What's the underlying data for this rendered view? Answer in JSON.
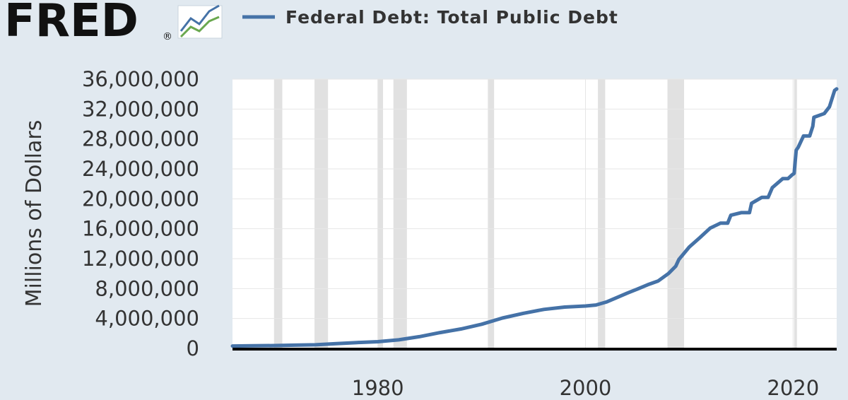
{
  "logo": {
    "text": "FRED",
    "mark": "®",
    "icon": "fred-line-chart-icon"
  },
  "chart_data": {
    "type": "line",
    "title": "",
    "xlabel": "",
    "ylabel": "Millions of Dollars",
    "legend": {
      "position": "top-left",
      "entries": [
        "Federal Debt: Total Public Debt"
      ]
    },
    "xlim": [
      1966,
      2024.2
    ],
    "ylim": [
      0,
      36000000
    ],
    "y_ticks": [
      0,
      4000000,
      8000000,
      12000000,
      16000000,
      20000000,
      24000000,
      28000000,
      32000000,
      36000000
    ],
    "y_tick_labels": [
      "0",
      "4,000,000",
      "8,000,000",
      "12,000,000",
      "16,000,000",
      "20,000,000",
      "24,000,000",
      "28,000,000",
      "32,000,000",
      "36,000,000"
    ],
    "x_ticks": [
      1980,
      2000,
      2020
    ],
    "x_tick_labels": [
      "1980",
      "2000",
      "2020"
    ],
    "grid": true,
    "recession_shading": [
      [
        1970.0,
        1970.8
      ],
      [
        1973.9,
        1975.2
      ],
      [
        1980.0,
        1980.5
      ],
      [
        1981.5,
        1982.8
      ],
      [
        1990.6,
        1991.2
      ],
      [
        2001.2,
        2001.9
      ],
      [
        2007.9,
        2009.5
      ],
      [
        2020.1,
        2020.35
      ]
    ],
    "colors": {
      "line": "#4572a7",
      "shading": "#e1e1e1",
      "plot_background": "#ffffff",
      "grid": "#e6e6e6",
      "axis": "#000000",
      "page_background": "#e1e9f0"
    },
    "series": [
      {
        "name": "Federal Debt: Total Public Debt",
        "x": [
          1966,
          1968,
          1970,
          1972,
          1974,
          1976,
          1978,
          1980,
          1982,
          1984,
          1986,
          1988,
          1990,
          1992,
          1994,
          1996,
          1998,
          2000,
          2001,
          2002,
          2003,
          2004,
          2005,
          2006,
          2007,
          2008,
          2008.7,
          2009,
          2010,
          2011,
          2012,
          2013,
          2013.7,
          2014,
          2015,
          2015.8,
          2016,
          2017,
          2017.6,
          2018,
          2019,
          2019.5,
          2019.9,
          2020.1,
          2020.3,
          2020.5,
          2021,
          2021.6,
          2021.9,
          2022,
          2023,
          2023.5,
          2024,
          2024.2
        ],
        "y": [
          320000,
          350000,
          380000,
          430000,
          480000,
          630000,
          780000,
          900000,
          1140000,
          1570000,
          2120000,
          2600000,
          3230000,
          4060000,
          4690000,
          5220000,
          5530000,
          5670000,
          5800000,
          6200000,
          6780000,
          7380000,
          7930000,
          8510000,
          9010000,
          10020000,
          11000000,
          11900000,
          13560000,
          14790000,
          16070000,
          16740000,
          16740000,
          17800000,
          18150000,
          18150000,
          19400000,
          20200000,
          20200000,
          21500000,
          22700000,
          22700000,
          23200000,
          23400000,
          26500000,
          26900000,
          28400000,
          28400000,
          29700000,
          30900000,
          31400000,
          32300000,
          34500000,
          34700000
        ]
      }
    ]
  }
}
